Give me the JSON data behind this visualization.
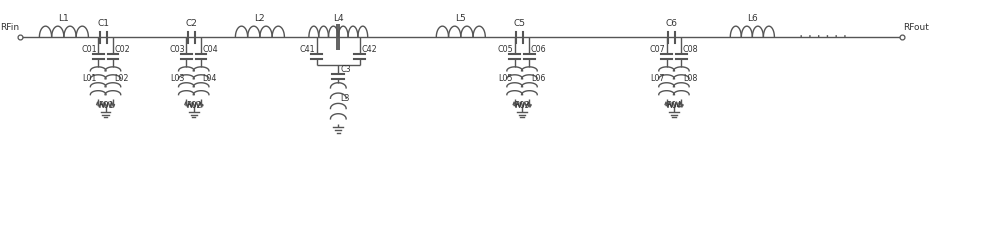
{
  "bg_color": "#ffffff",
  "line_color": "#555555",
  "text_color": "#333333",
  "figsize": [
    10.0,
    2.33
  ],
  "dpi": 100,
  "xlim": [
    0,
    100
  ],
  "ylim": [
    0,
    23
  ]
}
